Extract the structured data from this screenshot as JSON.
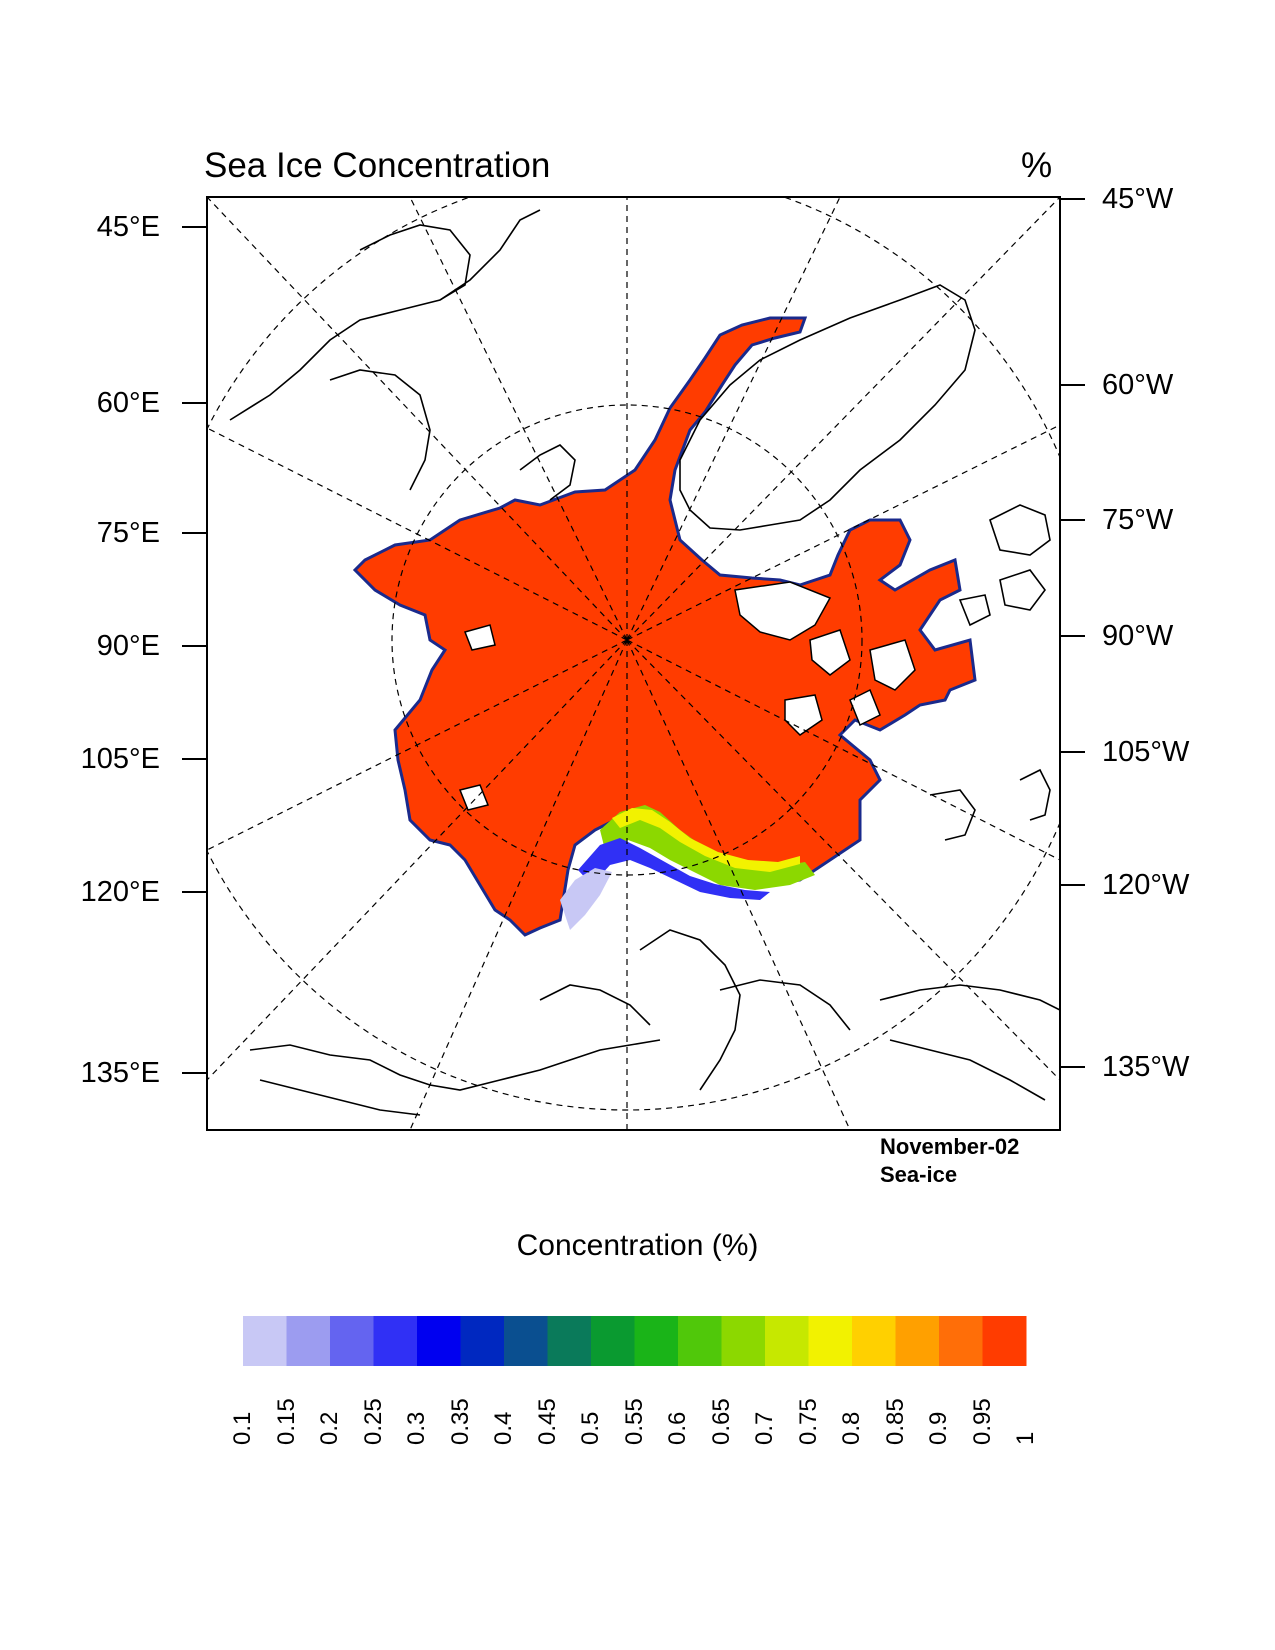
{
  "title": "Sea Ice Concentration",
  "units": "%",
  "info": {
    "date": "November-02",
    "variable": "Sea-ice"
  },
  "colorbar": {
    "title": "Concentration (%)",
    "labels": [
      "0.1",
      "0.15",
      "0.2",
      "0.25",
      "0.3",
      "0.35",
      "0.4",
      "0.45",
      "0.5",
      "0.55",
      "0.6",
      "0.65",
      "0.7",
      "0.75",
      "0.8",
      "0.85",
      "0.9",
      "0.95",
      "1"
    ],
    "colors": [
      "#c8c8f5",
      "#9c9cf0",
      "#6464f0",
      "#3030f5",
      "#0000f0",
      "#0028c0",
      "#0a4f90",
      "#0a7a5a",
      "#0a9a30",
      "#1ab418",
      "#50c80a",
      "#8cd800",
      "#c6e800",
      "#f2f200",
      "#ffd000",
      "#ffa000",
      "#ff6e08",
      "#ff3c00"
    ]
  },
  "axes": {
    "left_labels": [
      "45°E",
      "60°E",
      "75°E",
      "90°E",
      "105°E",
      "120°E",
      "135°E"
    ],
    "right_labels": [
      "45°W",
      "60°W",
      "75°W",
      "90°W",
      "105°W",
      "120°W",
      "135°W"
    ]
  },
  "map": {
    "projection": "north-polar-stereographic",
    "ice_color": "#ff3c00",
    "land_outline": "#000000",
    "graticule": "dashed"
  }
}
